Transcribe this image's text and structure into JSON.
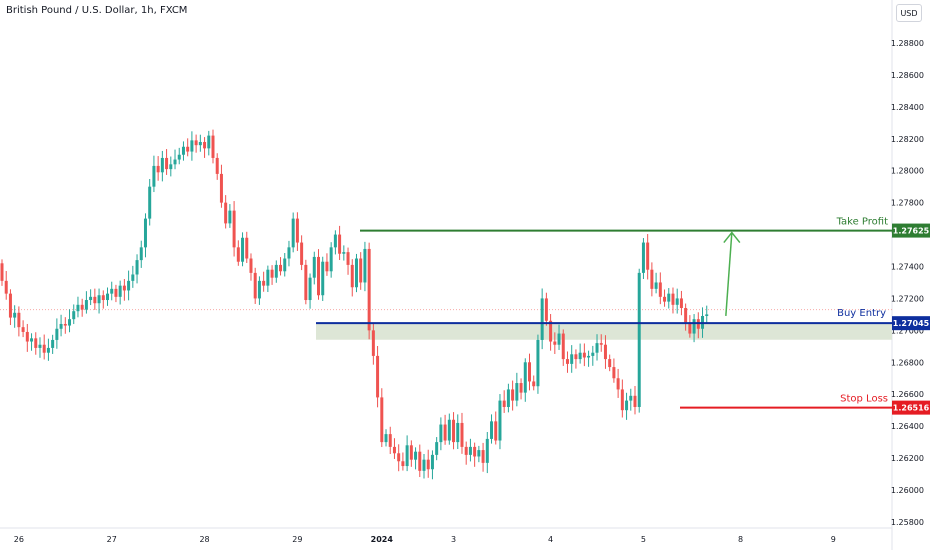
{
  "header": {
    "symbol_title": "British Pound / U.S. Dollar, 1h, FXCM",
    "currency": "USD"
  },
  "colors": {
    "up": "#26a69a",
    "down": "#ef5350",
    "take_profit": "#2e7d32",
    "buy_entry": "#0d2e9e",
    "stop_loss": "#e51c23",
    "zone": "#dde6d6",
    "arrow": "#4caf50",
    "ref_line": "#f7a9a8"
  },
  "chart_data": {
    "type": "candlestick",
    "y_axis_ticks": [
      "1.28800",
      "1.28600",
      "1.28400",
      "1.28200",
      "1.28000",
      "1.27800",
      "1.27600",
      "1.27400",
      "1.27200",
      "1.27000",
      "1.26800",
      "1.26600",
      "1.26400",
      "1.26200",
      "1.26000",
      "1.25800"
    ],
    "ylim": [
      1.2573,
      1.2899
    ],
    "x_axis_ticks": [
      {
        "label": "26",
        "bar": 4
      },
      {
        "label": "27",
        "bar": 26
      },
      {
        "label": "28",
        "bar": 48
      },
      {
        "label": "29",
        "bar": 70
      },
      {
        "label": "2024",
        "bar": 90
      },
      {
        "label": "3",
        "bar": 107
      },
      {
        "label": "4",
        "bar": 130
      },
      {
        "label": "5",
        "bar": 152
      },
      {
        "label": "8",
        "bar": 175
      },
      {
        "label": "9",
        "bar": 197
      }
    ],
    "series_closes": [
      1.2731,
      1.2723,
      1.2708,
      1.2711,
      1.2702,
      1.2699,
      1.2693,
      1.2695,
      1.2689,
      1.2691,
      1.2686,
      1.2689,
      1.2694,
      1.2701,
      1.2704,
      1.2703,
      1.2707,
      1.2712,
      1.2716,
      1.2713,
      1.2719,
      1.2721,
      1.2717,
      1.2722,
      1.2719,
      1.2723,
      1.2726,
      1.2721,
      1.2728,
      1.2725,
      1.2731,
      1.2735,
      1.2744,
      1.2752,
      1.277,
      1.279,
      1.2803,
      1.2799,
      1.2808,
      1.2801,
      1.2804,
      1.2807,
      1.281,
      1.2815,
      1.2812,
      1.2819,
      1.2816,
      1.2818,
      1.2814,
      1.2822,
      1.2808,
      1.2798,
      1.278,
      1.2767,
      1.2775,
      1.2752,
      1.2743,
      1.2758,
      1.2745,
      1.2736,
      1.272,
      1.2731,
      1.2728,
      1.2738,
      1.2733,
      1.2741,
      1.2737,
      1.2745,
      1.2752,
      1.277,
      1.2755,
      1.2741,
      1.2719,
      1.2733,
      1.2746,
      1.2722,
      1.2743,
      1.2737,
      1.2752,
      1.276,
      1.2748,
      1.2749,
      1.2741,
      1.2727,
      1.2745,
      1.273,
      1.2751,
      1.27,
      1.2684,
      1.2658,
      1.263,
      1.2635,
      1.2627,
      1.2623,
      1.2618,
      1.2615,
      1.2628,
      1.2619,
      1.2624,
      1.2612,
      1.2619,
      1.2613,
      1.2622,
      1.263,
      1.2641,
      1.2631,
      1.2644,
      1.263,
      1.2642,
      1.2627,
      1.2622,
      1.2627,
      1.2621,
      1.2625,
      1.2617,
      1.2632,
      1.2643,
      1.2631,
      1.2656,
      1.2652,
      1.2663,
      1.2656,
      1.2667,
      1.2661,
      1.268,
      1.2668,
      1.2665,
      1.2694,
      1.272,
      1.2706,
      1.2693,
      1.2691,
      1.2698,
      1.2682,
      1.2679,
      1.2685,
      1.2682,
      1.2686,
      1.2683,
      1.2684,
      1.2686,
      1.2692,
      1.2691,
      1.2682,
      1.2677,
      1.267,
      1.2663,
      1.265,
      1.2656,
      1.2659,
      1.2652,
      1.2736,
      1.2755,
      1.2738,
      1.2726,
      1.273,
      1.2721,
      1.2718,
      1.2723,
      1.2716,
      1.272,
      1.2714,
      1.2705,
      1.2698,
      1.2707,
      1.2701,
      1.2709,
      1.271
    ],
    "overlays": {
      "take_profit": {
        "label": "Take Profit",
        "price": 1.27625,
        "price_label": "1.27625"
      },
      "buy_entry": {
        "label": "Buy Entry",
        "price": 1.27045,
        "price_label": "1.27045"
      },
      "stop_loss": {
        "label": "Stop Loss",
        "price": 1.26516,
        "price_label": "1.26516"
      },
      "entry_zone": {
        "from": 1.2696,
        "to": 1.27045
      },
      "dotted_reference_price": 1.2713
    }
  }
}
